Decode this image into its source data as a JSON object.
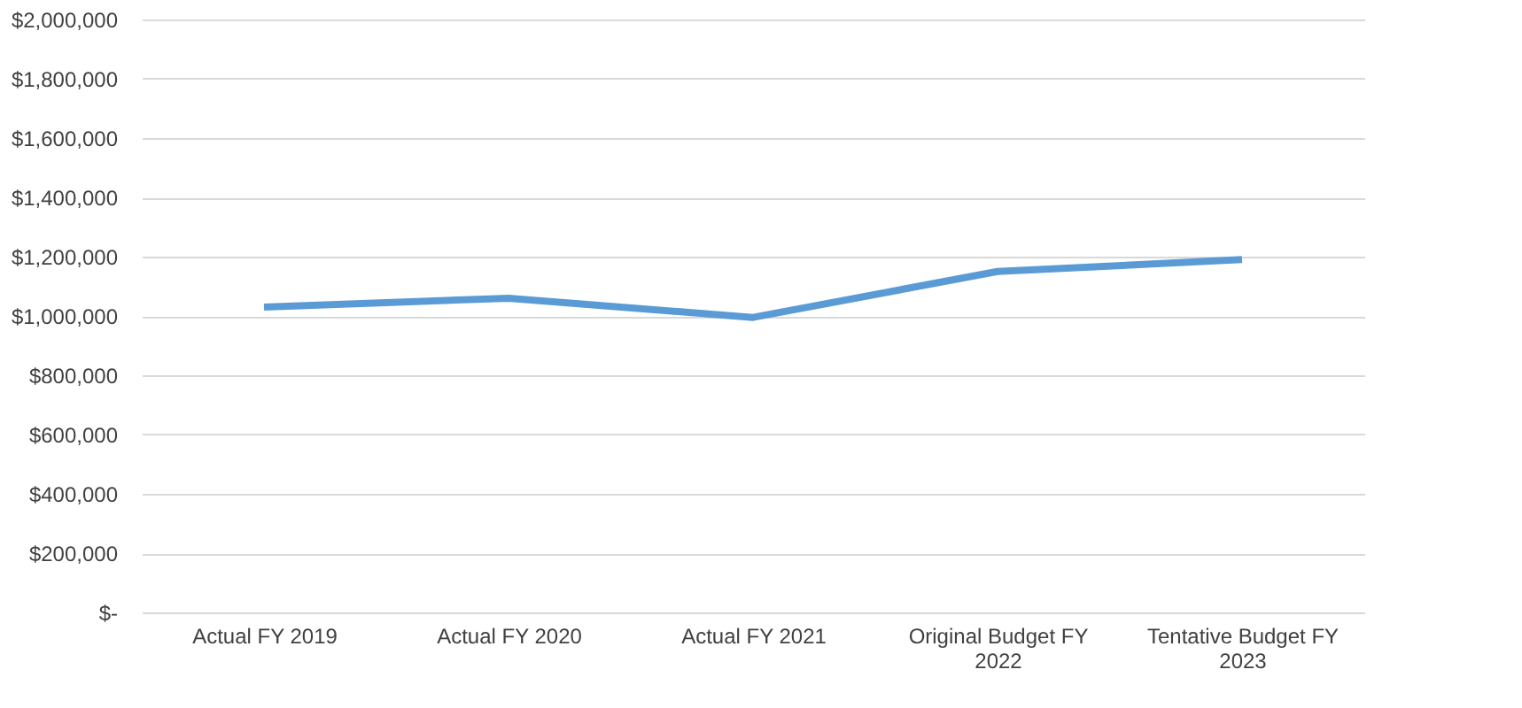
{
  "chart_data": {
    "type": "line",
    "categories": [
      "Actual FY 2019",
      "Actual FY 2020",
      "Actual FY 2021",
      "Original Budget FY 2022",
      "Tentative Budget FY 2023"
    ],
    "series": [
      {
        "color": "#5b9bd5",
        "values": [
          1030000,
          1060000,
          995000,
          1150000,
          1190000
        ]
      }
    ],
    "ylim": [
      0,
      2000000
    ],
    "yticks": [
      {
        "value": 0,
        "label": "$-"
      },
      {
        "value": 200000,
        "label": "$200,000"
      },
      {
        "value": 400000,
        "label": "$400,000"
      },
      {
        "value": 600000,
        "label": "$600,000"
      },
      {
        "value": 800000,
        "label": "$800,000"
      },
      {
        "value": 1000000,
        "label": "$1,000,000"
      },
      {
        "value": 1200000,
        "label": "$1,200,000"
      },
      {
        "value": 1400000,
        "label": "$1,400,000"
      },
      {
        "value": 1600000,
        "label": "$1,600,000"
      },
      {
        "value": 1800000,
        "label": "$1,800,000"
      },
      {
        "value": 2000000,
        "label": "$2,000,000"
      }
    ],
    "grid": "y",
    "marker": "none",
    "line_style": "solid"
  }
}
